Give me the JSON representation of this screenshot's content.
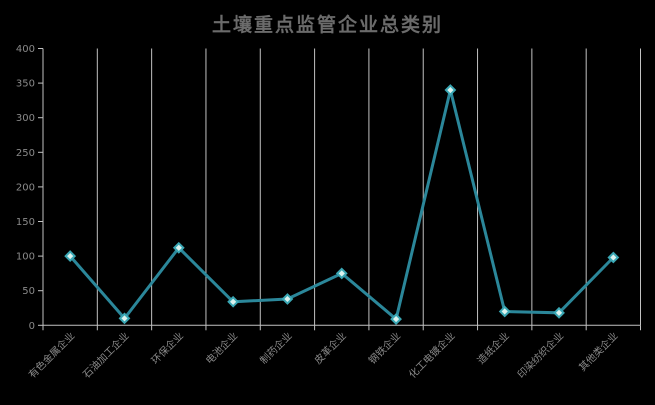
{
  "chart_data": {
    "type": "line",
    "title": "土壤重点监管企业总类别",
    "categories": [
      "有色金属企业",
      "石油加工企业",
      "环保企业",
      "电池企业",
      "制药企业",
      "皮革企业",
      "钢铁企业",
      "化工电镀企业",
      "造纸企业",
      "印染纺织企业",
      "其他类企业"
    ],
    "values": [
      100,
      10,
      112,
      34,
      38,
      75,
      9,
      340,
      20,
      18,
      98
    ],
    "xlabel": "",
    "ylabel": "",
    "ylim": [
      0,
      400
    ],
    "y_ticks": [
      0,
      50,
      100,
      150,
      200,
      250,
      300,
      350,
      400
    ],
    "grid": "vertical-only",
    "legend": "none",
    "x_label_rotation_deg": 45,
    "marker_shape": "diamond",
    "colors": {
      "background": "#000000",
      "title": "#6b6b6b",
      "axis": "#c2c2c2",
      "gridline": "#c2c2c2",
      "tick_label": "#8a8a8a",
      "line": "#2b879a",
      "marker_fill": "#ddf3ef",
      "marker_border": "#3aa7b4"
    }
  }
}
